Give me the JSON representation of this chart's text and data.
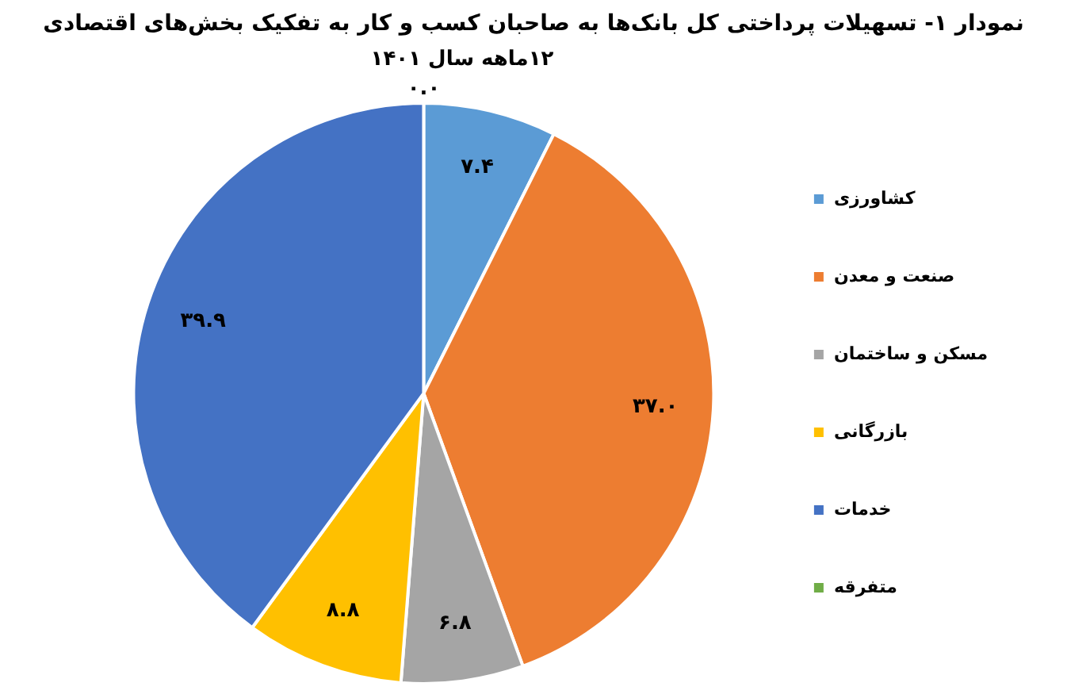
{
  "chart_data": {
    "type": "pie",
    "title": "نمودار ۱- تسهیلات پرداختی کل بانک‌ها به صاحبان کسب و کار به تفکیک بخش‌های اقتصادی",
    "subtitle": "۱۲ماهه سال ۱۴۰۱",
    "categories": [
      "کشاورزی",
      "صنعت و معدن",
      "مسکن و ساختمان",
      "بازرگانی",
      "خدمات",
      "متفرقه"
    ],
    "values": [
      7.4,
      37.0,
      6.8,
      8.8,
      39.9,
      0.0
    ],
    "colors": [
      "#5b9bd5",
      "#ed7d31",
      "#a5a5a5",
      "#ffc000",
      "#4472c4",
      "#70ad47"
    ],
    "value_labels": [
      "۷.۴",
      "۳۷.۰",
      "۶.۸",
      "۸.۸",
      "۳۹.۹",
      "۰.۰"
    ],
    "legend": "right"
  }
}
